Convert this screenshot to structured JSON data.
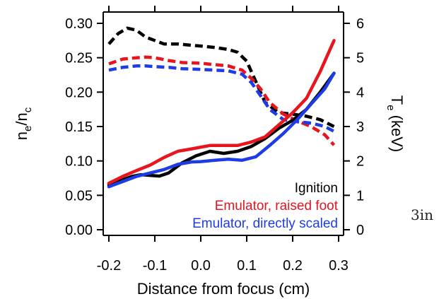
{
  "chart_data": {
    "type": "line",
    "xlabel": "Distance from focus (cm)",
    "ylabel_left": "n_e/n_c",
    "ylabel_right": "T_e (keV)",
    "xlim": [
      -0.2,
      0.3
    ],
    "ylim_left": [
      0.0,
      0.3
    ],
    "ylim_right": [
      0,
      6
    ],
    "x_ticks": [
      "-0.2",
      "-0.1",
      "0.0",
      "0.1",
      "0.2",
      "0.3"
    ],
    "y_left_ticks": [
      "0.00",
      "0.05",
      "0.10",
      "0.15",
      "0.20",
      "0.25",
      "0.30"
    ],
    "y_right_ticks": [
      "0",
      "1",
      "2",
      "3",
      "4",
      "5",
      "6"
    ],
    "legend": {
      "placement": "bottom-right"
    },
    "colors": {
      "Ignition": "#000000",
      "Emulator, raised foot": "#e8141e",
      "Emulator, directly scaled": "#1e3ce6"
    },
    "series": [
      {
        "name": "Ignition",
        "quantity": "n_e/n_c",
        "style": "dashed",
        "x": [
          -0.2,
          -0.18,
          -0.16,
          -0.14,
          -0.12,
          -0.1,
          -0.08,
          -0.05,
          -0.02,
          0.0,
          0.03,
          0.06,
          0.08,
          0.1,
          0.12,
          0.14,
          0.17,
          0.2,
          0.23,
          0.26,
          0.29
        ],
        "y": [
          0.27,
          0.285,
          0.293,
          0.29,
          0.28,
          0.275,
          0.27,
          0.27,
          0.268,
          0.267,
          0.265,
          0.262,
          0.258,
          0.245,
          0.215,
          0.185,
          0.17,
          0.168,
          0.165,
          0.16,
          0.15
        ]
      },
      {
        "name": "Emulator, raised foot",
        "quantity": "n_e/n_c",
        "style": "dashed",
        "x": [
          -0.2,
          -0.17,
          -0.14,
          -0.12,
          -0.1,
          -0.07,
          -0.04,
          0.0,
          0.03,
          0.06,
          0.09,
          0.11,
          0.13,
          0.15,
          0.18,
          0.21,
          0.24,
          0.27,
          0.29
        ],
        "y": [
          0.241,
          0.248,
          0.25,
          0.251,
          0.25,
          0.246,
          0.243,
          0.242,
          0.24,
          0.238,
          0.232,
          0.22,
          0.205,
          0.185,
          0.168,
          0.158,
          0.15,
          0.138,
          0.123
        ]
      },
      {
        "name": "Emulator, directly scaled",
        "quantity": "n_e/n_c",
        "style": "dashed",
        "x": [
          -0.2,
          -0.17,
          -0.14,
          -0.12,
          -0.1,
          -0.07,
          -0.04,
          0.0,
          0.03,
          0.06,
          0.09,
          0.11,
          0.13,
          0.15,
          0.18,
          0.21,
          0.24,
          0.27,
          0.29
        ],
        "y": [
          0.232,
          0.236,
          0.238,
          0.238,
          0.237,
          0.236,
          0.234,
          0.233,
          0.232,
          0.231,
          0.226,
          0.214,
          0.195,
          0.175,
          0.16,
          0.157,
          0.155,
          0.15,
          0.143
        ]
      },
      {
        "name": "Ignition",
        "quantity": "T_e (keV)",
        "style": "solid",
        "x": [
          -0.2,
          -0.17,
          -0.15,
          -0.13,
          -0.11,
          -0.09,
          -0.07,
          -0.04,
          -0.01,
          0.02,
          0.05,
          0.08,
          0.11,
          0.14,
          0.17,
          0.2,
          0.23,
          0.26,
          0.29
        ],
        "y": [
          1.3,
          1.45,
          1.55,
          1.6,
          1.58,
          1.56,
          1.65,
          1.95,
          2.15,
          2.28,
          2.22,
          2.28,
          2.42,
          2.65,
          2.95,
          3.18,
          3.5,
          4.0,
          4.55
        ]
      },
      {
        "name": "Emulator, raised foot",
        "quantity": "T_e (keV)",
        "style": "solid",
        "x": [
          -0.2,
          -0.17,
          -0.14,
          -0.11,
          -0.08,
          -0.05,
          -0.02,
          0.02,
          0.05,
          0.08,
          0.11,
          0.14,
          0.17,
          0.2,
          0.23,
          0.26,
          0.29
        ],
        "y": [
          1.35,
          1.55,
          1.72,
          1.88,
          2.1,
          2.28,
          2.35,
          2.45,
          2.45,
          2.45,
          2.55,
          2.7,
          3.05,
          3.4,
          3.82,
          4.6,
          5.5
        ]
      },
      {
        "name": "Emulator, directly scaled",
        "quantity": "T_e (keV)",
        "style": "solid",
        "x": [
          -0.2,
          -0.17,
          -0.14,
          -0.11,
          -0.08,
          -0.05,
          -0.02,
          0.0,
          0.03,
          0.06,
          0.09,
          0.12,
          0.15,
          0.18,
          0.21,
          0.24,
          0.27,
          0.29
        ],
        "y": [
          1.25,
          1.4,
          1.55,
          1.65,
          1.75,
          1.9,
          1.97,
          1.98,
          2.02,
          2.05,
          2.02,
          2.12,
          2.45,
          2.8,
          3.2,
          3.65,
          4.1,
          4.55
        ]
      }
    ],
    "legend_entries": [
      "Ignition",
      "Emulator, raised foot",
      "Emulator, directly scaled"
    ]
  },
  "side_note": "3in"
}
